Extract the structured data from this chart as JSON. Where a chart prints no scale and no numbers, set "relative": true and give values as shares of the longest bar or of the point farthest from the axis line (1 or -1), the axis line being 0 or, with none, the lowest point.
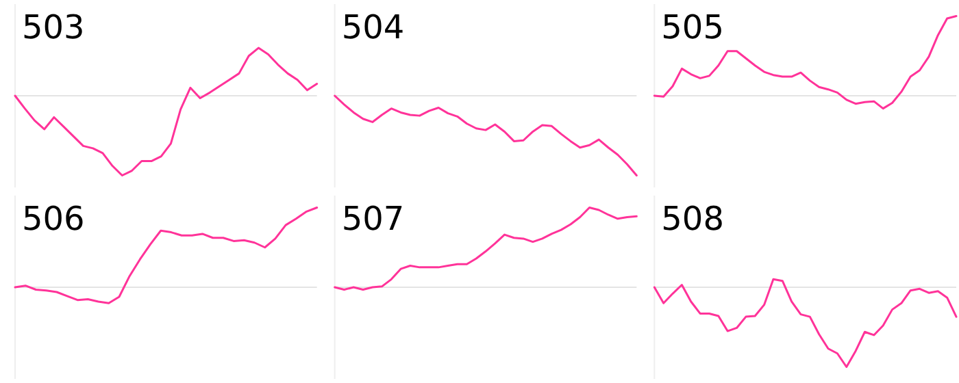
{
  "chart_data": [
    {
      "type": "line",
      "title": "503",
      "relative": true,
      "categories": [
        null,
        null,
        null,
        null,
        null,
        null,
        null,
        null,
        null,
        null,
        null,
        null,
        null,
        null,
        null,
        null,
        null,
        null,
        null,
        null,
        null,
        null,
        null,
        null,
        null,
        null,
        null,
        null,
        null,
        null,
        null,
        null
      ],
      "series": [
        {
          "color": "#ff3399",
          "values": [
            0,
            -0.16,
            -0.31,
            -0.42,
            -0.27,
            -0.39,
            -0.51,
            -0.63,
            -0.66,
            -0.72,
            -0.88,
            -1.0,
            -0.94,
            -0.82,
            -0.82,
            -0.76,
            -0.6,
            -0.17,
            0.1,
            -0.03,
            0.04,
            0.12,
            0.2,
            0.28,
            0.5,
            0.6,
            0.52,
            0.39,
            0.28,
            0.2,
            0.07,
            0.15
          ]
        }
      ]
    },
    {
      "type": "line",
      "title": "504",
      "relative": true,
      "categories": [
        null,
        null,
        null,
        null,
        null,
        null,
        null,
        null,
        null,
        null,
        null,
        null,
        null,
        null,
        null,
        null,
        null,
        null,
        null,
        null,
        null,
        null,
        null,
        null,
        null,
        null,
        null,
        null,
        null,
        null,
        null,
        null,
        null
      ],
      "series": [
        {
          "color": "#ff3399",
          "values": [
            0,
            -0.11,
            -0.21,
            -0.29,
            -0.33,
            -0.24,
            -0.16,
            -0.21,
            -0.24,
            -0.25,
            -0.19,
            -0.15,
            -0.22,
            -0.26,
            -0.35,
            -0.41,
            -0.43,
            -0.36,
            -0.45,
            -0.57,
            -0.56,
            -0.45,
            -0.37,
            -0.38,
            -0.48,
            -0.57,
            -0.65,
            -0.62,
            -0.55,
            -0.65,
            -0.74,
            -0.86,
            -1.0
          ]
        }
      ]
    },
    {
      "type": "line",
      "title": "505",
      "relative": true,
      "categories": [
        null,
        null,
        null,
        null,
        null,
        null,
        null,
        null,
        null,
        null,
        null,
        null,
        null,
        null,
        null,
        null,
        null,
        null,
        null,
        null,
        null,
        null,
        null,
        null,
        null,
        null,
        null,
        null,
        null,
        null,
        null,
        null,
        null,
        null
      ],
      "series": [
        {
          "color": "#ff3399",
          "values": [
            0,
            -0.01,
            0.12,
            0.34,
            0.27,
            0.22,
            0.25,
            0.38,
            0.56,
            0.56,
            0.47,
            0.38,
            0.3,
            0.26,
            0.24,
            0.24,
            0.29,
            0.19,
            0.11,
            0.08,
            0.04,
            -0.05,
            -0.1,
            -0.08,
            -0.07,
            -0.16,
            -0.09,
            0.05,
            0.24,
            0.32,
            0.49,
            0.76,
            0.97,
            1.0
          ]
        }
      ]
    },
    {
      "type": "line",
      "title": "506",
      "relative": true,
      "categories": [
        null,
        null,
        null,
        null,
        null,
        null,
        null,
        null,
        null,
        null,
        null,
        null,
        null,
        null,
        null,
        null,
        null,
        null,
        null,
        null,
        null,
        null,
        null,
        null,
        null,
        null,
        null,
        null,
        null,
        null
      ],
      "series": [
        {
          "color": "#ff3399",
          "values": [
            0,
            0.02,
            -0.03,
            -0.04,
            -0.06,
            -0.11,
            -0.16,
            -0.15,
            -0.18,
            -0.2,
            -0.12,
            0.14,
            0.35,
            0.54,
            0.71,
            0.69,
            0.65,
            0.65,
            0.67,
            0.62,
            0.62,
            0.58,
            0.59,
            0.56,
            0.5,
            0.61,
            0.78,
            0.86,
            0.95,
            1.0
          ]
        }
      ]
    },
    {
      "type": "line",
      "title": "507",
      "relative": true,
      "categories": [
        null,
        null,
        null,
        null,
        null,
        null,
        null,
        null,
        null,
        null,
        null,
        null,
        null,
        null,
        null,
        null,
        null,
        null,
        null,
        null,
        null,
        null,
        null,
        null,
        null,
        null,
        null,
        null,
        null,
        null,
        null,
        null,
        null
      ],
      "series": [
        {
          "color": "#ff3399",
          "values": [
            0,
            -0.03,
            0,
            -0.03,
            0,
            0.01,
            0.1,
            0.23,
            0.27,
            0.25,
            0.25,
            0.25,
            0.27,
            0.29,
            0.29,
            0.36,
            0.45,
            0.55,
            0.66,
            0.62,
            0.61,
            0.57,
            0.61,
            0.67,
            0.72,
            0.79,
            0.88,
            1.0,
            0.97,
            0.91,
            0.86,
            0.88,
            0.89
          ]
        }
      ]
    },
    {
      "type": "line",
      "title": "508",
      "relative": true,
      "categories": [
        null,
        null,
        null,
        null,
        null,
        null,
        null,
        null,
        null,
        null,
        null,
        null,
        null,
        null,
        null,
        null,
        null,
        null,
        null,
        null,
        null,
        null,
        null,
        null,
        null,
        null,
        null,
        null,
        null,
        null,
        null,
        null,
        null,
        null
      ],
      "series": [
        {
          "color": "#ff3399",
          "values": [
            0,
            -0.2,
            -0.08,
            0.03,
            -0.18,
            -0.33,
            -0.33,
            -0.36,
            -0.55,
            -0.51,
            -0.37,
            -0.36,
            -0.22,
            0.1,
            0.08,
            -0.18,
            -0.34,
            -0.37,
            -0.59,
            -0.77,
            -0.83,
            -1.0,
            -0.8,
            -0.56,
            -0.6,
            -0.48,
            -0.28,
            -0.2,
            -0.04,
            -0.02,
            -0.07,
            -0.05,
            -0.13,
            -0.37
          ]
        }
      ]
    }
  ]
}
